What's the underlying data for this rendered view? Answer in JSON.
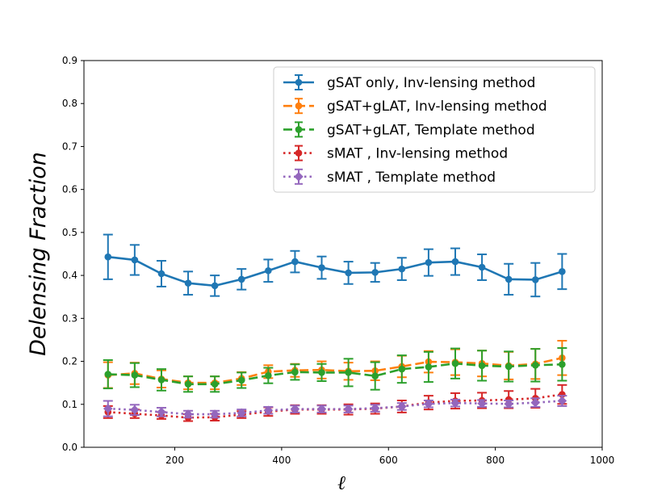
{
  "chart_data": {
    "type": "line",
    "title": "",
    "xlabel": "ℓ",
    "ylabel": "Delensing Fraction",
    "xlim": [
      30,
      1000
    ],
    "ylim": [
      0.0,
      0.9
    ],
    "xticks": [
      200,
      400,
      600,
      800,
      1000
    ],
    "xtick_labels": [
      "200",
      "400",
      "600",
      "800",
      "1000"
    ],
    "yticks": [
      0.0,
      0.1,
      0.2,
      0.3,
      0.4,
      0.5,
      0.6,
      0.7,
      0.8,
      0.9
    ],
    "ytick_labels": [
      "0.0",
      "0.1",
      "0.2",
      "0.3",
      "0.4",
      "0.5",
      "0.6",
      "0.7",
      "0.8",
      "0.9"
    ],
    "grid": false,
    "legend_position": "top-right",
    "x": [
      75,
      125,
      175,
      225,
      275,
      325,
      375,
      425,
      475,
      525,
      575,
      625,
      675,
      725,
      775,
      825,
      875,
      925
    ],
    "series": [
      {
        "name": "gSAT only, Inv-lensing method",
        "color": "#1f77b4",
        "linestyle": "solid",
        "marker": "circle",
        "values": [
          0.443,
          0.436,
          0.404,
          0.382,
          0.376,
          0.391,
          0.411,
          0.432,
          0.418,
          0.406,
          0.407,
          0.415,
          0.43,
          0.432,
          0.419,
          0.391,
          0.39,
          0.409
        ],
        "errors": [
          0.052,
          0.035,
          0.03,
          0.027,
          0.024,
          0.024,
          0.026,
          0.025,
          0.026,
          0.026,
          0.022,
          0.026,
          0.031,
          0.031,
          0.03,
          0.036,
          0.039,
          0.041
        ]
      },
      {
        "name": "gSAT+gLAT, Inv-lensing method",
        "color": "#ff7f0e",
        "linestyle": "dashed",
        "marker": "circle",
        "values": [
          0.168,
          0.172,
          0.159,
          0.15,
          0.15,
          0.16,
          0.176,
          0.179,
          0.18,
          0.177,
          0.178,
          0.188,
          0.199,
          0.198,
          0.195,
          0.19,
          0.194,
          0.208
        ],
        "errors": [
          0.03,
          0.025,
          0.02,
          0.015,
          0.015,
          0.015,
          0.015,
          0.015,
          0.02,
          0.02,
          0.022,
          0.025,
          0.025,
          0.03,
          0.03,
          0.032,
          0.035,
          0.04
        ]
      },
      {
        "name": "gSAT+gLAT, Template method",
        "color": "#2ca02c",
        "linestyle": "dashed",
        "marker": "circle",
        "values": [
          0.17,
          0.168,
          0.157,
          0.147,
          0.147,
          0.156,
          0.167,
          0.175,
          0.174,
          0.174,
          0.166,
          0.182,
          0.187,
          0.195,
          0.19,
          0.188,
          0.191,
          0.193
        ],
        "errors": [
          0.033,
          0.028,
          0.025,
          0.018,
          0.018,
          0.018,
          0.018,
          0.018,
          0.02,
          0.032,
          0.032,
          0.032,
          0.035,
          0.035,
          0.035,
          0.035,
          0.038,
          0.038
        ]
      },
      {
        "name": "sMAT , Inv-lensing method",
        "color": "#d62728",
        "linestyle": "dotted",
        "marker": "circle",
        "values": [
          0.082,
          0.078,
          0.074,
          0.069,
          0.07,
          0.076,
          0.083,
          0.088,
          0.088,
          0.088,
          0.09,
          0.095,
          0.104,
          0.108,
          0.109,
          0.111,
          0.114,
          0.123
        ],
        "errors": [
          0.014,
          0.01,
          0.008,
          0.008,
          0.008,
          0.008,
          0.01,
          0.01,
          0.01,
          0.012,
          0.012,
          0.014,
          0.016,
          0.018,
          0.018,
          0.02,
          0.022,
          0.022
        ]
      },
      {
        "name": "sMAT , Template method",
        "color": "#9467bd",
        "linestyle": "dotted",
        "marker": "diamond",
        "values": [
          0.09,
          0.087,
          0.082,
          0.077,
          0.077,
          0.08,
          0.086,
          0.089,
          0.089,
          0.089,
          0.091,
          0.095,
          0.101,
          0.103,
          0.102,
          0.101,
          0.104,
          0.108
        ],
        "errors": [
          0.018,
          0.012,
          0.01,
          0.008,
          0.008,
          0.008,
          0.008,
          0.008,
          0.008,
          0.008,
          0.008,
          0.008,
          0.008,
          0.008,
          0.008,
          0.008,
          0.01,
          0.012
        ]
      }
    ]
  }
}
